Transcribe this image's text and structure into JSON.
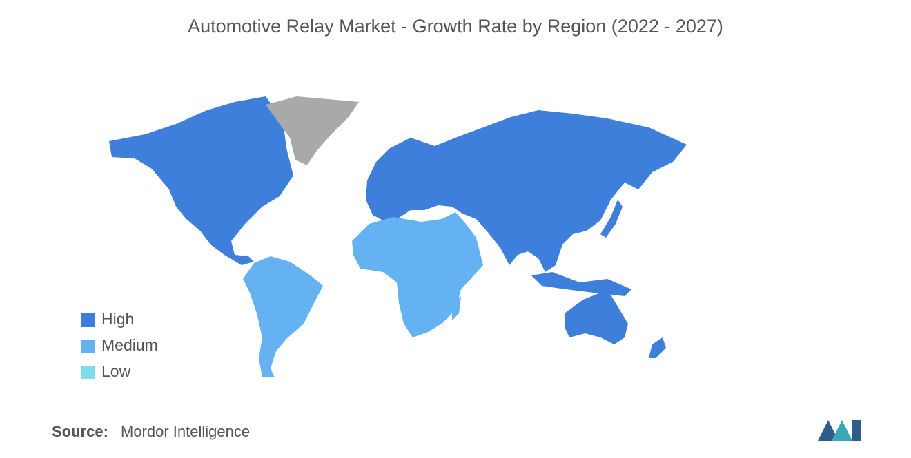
{
  "title": "Automotive Relay Market - Growth Rate by Region (2022 - 2027)",
  "legend": [
    {
      "label": "High",
      "color": "#3d7fdb"
    },
    {
      "label": "Medium",
      "color": "#64b2f2"
    },
    {
      "label": "Low",
      "color": "#7fdde9"
    }
  ],
  "no_data_color": "#a9a9a9",
  "source": {
    "label": "Source:",
    "text": "Mordor Intelligence"
  }
}
